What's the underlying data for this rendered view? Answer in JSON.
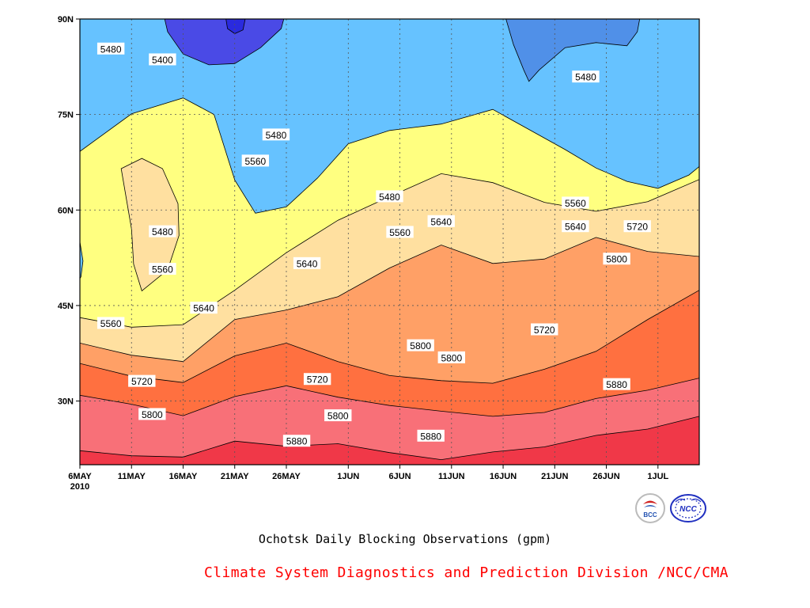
{
  "chart_data": {
    "type": "heatmap",
    "title": "Ochotsk Daily Blocking Observations (gpm)",
    "credit": "Climate System Diagnostics and Prediction Division /NCC/CMA",
    "x_ticks": [
      "6MAY",
      "11MAY",
      "16MAY",
      "21MAY",
      "26MAY",
      "1JUN",
      "6JUN",
      "11JUN",
      "16JUN",
      "21JUN",
      "26JUN",
      "1JUL"
    ],
    "x_year": "2010",
    "y_ticks": [
      "30N",
      "45N",
      "60N",
      "75N",
      "90N"
    ],
    "xlim": [
      "2010-05-06",
      "2010-07-05"
    ],
    "ylim": [
      20,
      90
    ],
    "grid": true,
    "contour_levels": [
      5320,
      5400,
      5480,
      5560,
      5640,
      5720,
      5800,
      5880
    ],
    "fill_colors": [
      "#2a2ade",
      "#4a4ae6",
      "#5090e8",
      "#66c2ff",
      "#ffff80",
      "#ffe0a0",
      "#ffa066",
      "#ff7040",
      "#f87078",
      "#f03848"
    ],
    "contour_labels": [
      {
        "text": "5400",
        "date": "2010-05-14",
        "lat": 83.6
      },
      {
        "text": "5480",
        "date": "2010-05-09",
        "lat": 85.3
      },
      {
        "text": "5480",
        "date": "2010-05-14",
        "lat": 56.6
      },
      {
        "text": "5480",
        "date": "2010-05-25",
        "lat": 71.8
      },
      {
        "text": "5480",
        "date": "2010-06-05",
        "lat": 62.1
      },
      {
        "text": "5480",
        "date": "2010-06-24",
        "lat": 80.9
      },
      {
        "text": "5560",
        "date": "2010-05-23",
        "lat": 67.7
      },
      {
        "text": "5560",
        "date": "2010-05-14",
        "lat": 50.7
      },
      {
        "text": "5560",
        "date": "2010-05-09",
        "lat": 42.2
      },
      {
        "text": "5560",
        "date": "2010-06-06",
        "lat": 56.5
      },
      {
        "text": "5560",
        "date": "2010-06-23",
        "lat": 61.1
      },
      {
        "text": "5640",
        "date": "2010-05-18",
        "lat": 44.6
      },
      {
        "text": "5640",
        "date": "2010-05-28",
        "lat": 51.6
      },
      {
        "text": "5640",
        "date": "2010-06-10",
        "lat": 58.2
      },
      {
        "text": "5640",
        "date": "2010-06-23",
        "lat": 57.4
      },
      {
        "text": "5720",
        "date": "2010-05-12",
        "lat": 33.1
      },
      {
        "text": "5720",
        "date": "2010-05-29",
        "lat": 33.4
      },
      {
        "text": "5720",
        "date": "2010-06-20",
        "lat": 41.2
      },
      {
        "text": "5720",
        "date": "2010-06-29",
        "lat": 57.4
      },
      {
        "text": "5800",
        "date": "2010-05-13",
        "lat": 27.9
      },
      {
        "text": "5800",
        "date": "2010-05-31",
        "lat": 27.7
      },
      {
        "text": "5800",
        "date": "2010-06-08",
        "lat": 38.7
      },
      {
        "text": "5800",
        "date": "2010-06-11",
        "lat": 36.8
      },
      {
        "text": "5800",
        "date": "2010-06-27",
        "lat": 52.3
      },
      {
        "text": "5880",
        "date": "2010-05-27",
        "lat": 23.7
      },
      {
        "text": "5880",
        "date": "2010-06-09",
        "lat": 24.5
      },
      {
        "text": "5880",
        "date": "2010-06-27",
        "lat": 32.6
      }
    ]
  },
  "logos": [
    {
      "name": "BCC",
      "text": "BCC"
    },
    {
      "name": "NCC",
      "text": "NCC"
    }
  ]
}
